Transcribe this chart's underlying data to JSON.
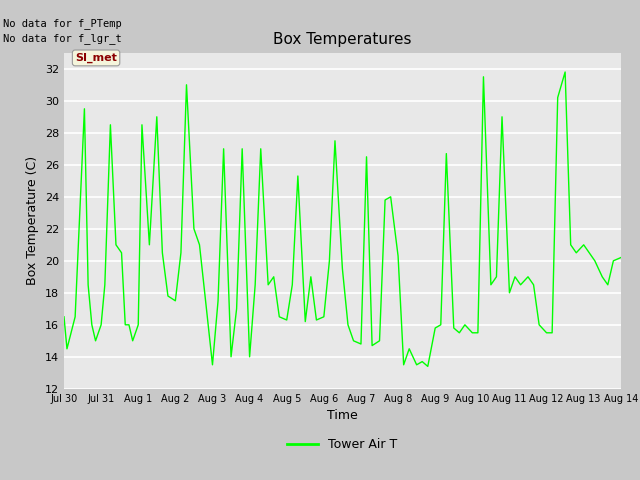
{
  "title": "Box Temperatures",
  "xlabel": "Time",
  "ylabel": "Box Temperature (C)",
  "ylim": [
    12,
    33
  ],
  "yticks": [
    12,
    14,
    16,
    18,
    20,
    22,
    24,
    26,
    28,
    30,
    32
  ],
  "bg_color": "#e8e8e8",
  "grid_color": "#ffffff",
  "line_color": "#00ff00",
  "no_data_text1": "No data for f_PTemp",
  "no_data_text2": "No data for f_lgr_t",
  "legend_label": "Tower Air T",
  "legend_box_label": "SI_met",
  "legend_box_color": "#8b0000",
  "legend_box_bg": "#f5f5dc",
  "xtick_labels": [
    "Jul 30",
    "Jul 31",
    "Aug 1",
    "Aug 2",
    "Aug 3",
    "Aug 4",
    "Aug 5",
    "Aug 6",
    "Aug 7",
    "Aug 8",
    "Aug 9",
    "Aug 10",
    "Aug 11",
    "Aug 12",
    "Aug 13",
    "Aug 14"
  ],
  "x_vals": [
    0,
    0.08,
    0.3,
    0.55,
    0.65,
    0.75,
    0.85,
    1.0,
    1.1,
    1.25,
    1.4,
    1.55,
    1.65,
    1.75,
    1.85,
    2.0,
    2.1,
    2.3,
    2.5,
    2.65,
    2.8,
    3.0,
    3.15,
    3.3,
    3.5,
    3.65,
    3.8,
    4.0,
    4.15,
    4.3,
    4.5,
    4.65,
    4.8,
    5.0,
    5.15,
    5.3,
    5.5,
    5.65,
    5.8,
    6.0,
    6.15,
    6.3,
    6.5,
    6.65,
    6.8,
    7.0,
    7.15,
    7.3,
    7.5,
    7.65,
    7.8,
    8.0,
    8.15,
    8.3,
    8.5,
    8.65,
    8.8,
    9.0,
    9.15,
    9.3,
    9.5,
    9.65,
    9.8,
    10.0,
    10.15,
    10.3,
    10.5,
    10.65,
    10.8,
    11.0,
    11.15,
    11.3,
    11.5,
    11.65,
    11.8,
    12.0,
    12.15,
    12.3,
    12.5,
    12.65,
    12.8,
    13.0,
    13.15,
    13.3,
    13.5,
    13.65,
    13.8,
    14.0,
    14.15,
    14.3,
    14.5,
    14.65,
    14.8,
    15.0
  ],
  "y_vals": [
    16.5,
    14.5,
    16.5,
    29.5,
    18.5,
    16.0,
    15.0,
    16.0,
    18.5,
    28.5,
    21.0,
    20.5,
    16.0,
    16.0,
    15.0,
    16.0,
    28.5,
    21.0,
    29.0,
    20.5,
    17.8,
    17.5,
    20.5,
    31.0,
    22.0,
    21.0,
    17.8,
    13.5,
    17.5,
    27.0,
    14.0,
    17.0,
    27.0,
    14.0,
    18.5,
    27.0,
    18.5,
    19.0,
    16.5,
    16.3,
    18.5,
    25.3,
    16.2,
    19.0,
    16.3,
    16.5,
    20.0,
    27.5,
    19.5,
    16.0,
    15.0,
    14.8,
    26.5,
    14.7,
    15.0,
    23.8,
    24.0,
    20.3,
    13.5,
    14.5,
    13.5,
    13.7,
    13.4,
    15.8,
    16.0,
    26.7,
    15.8,
    15.5,
    16.0,
    15.5,
    15.5,
    31.5,
    18.5,
    19.0,
    29.0,
    18.0,
    19.0,
    18.5,
    19.0,
    18.5,
    16.0,
    15.5,
    15.5,
    30.2,
    31.8,
    21.0,
    20.5,
    21.0,
    20.5,
    20.0,
    19.0,
    18.5,
    20.0,
    20.2
  ]
}
